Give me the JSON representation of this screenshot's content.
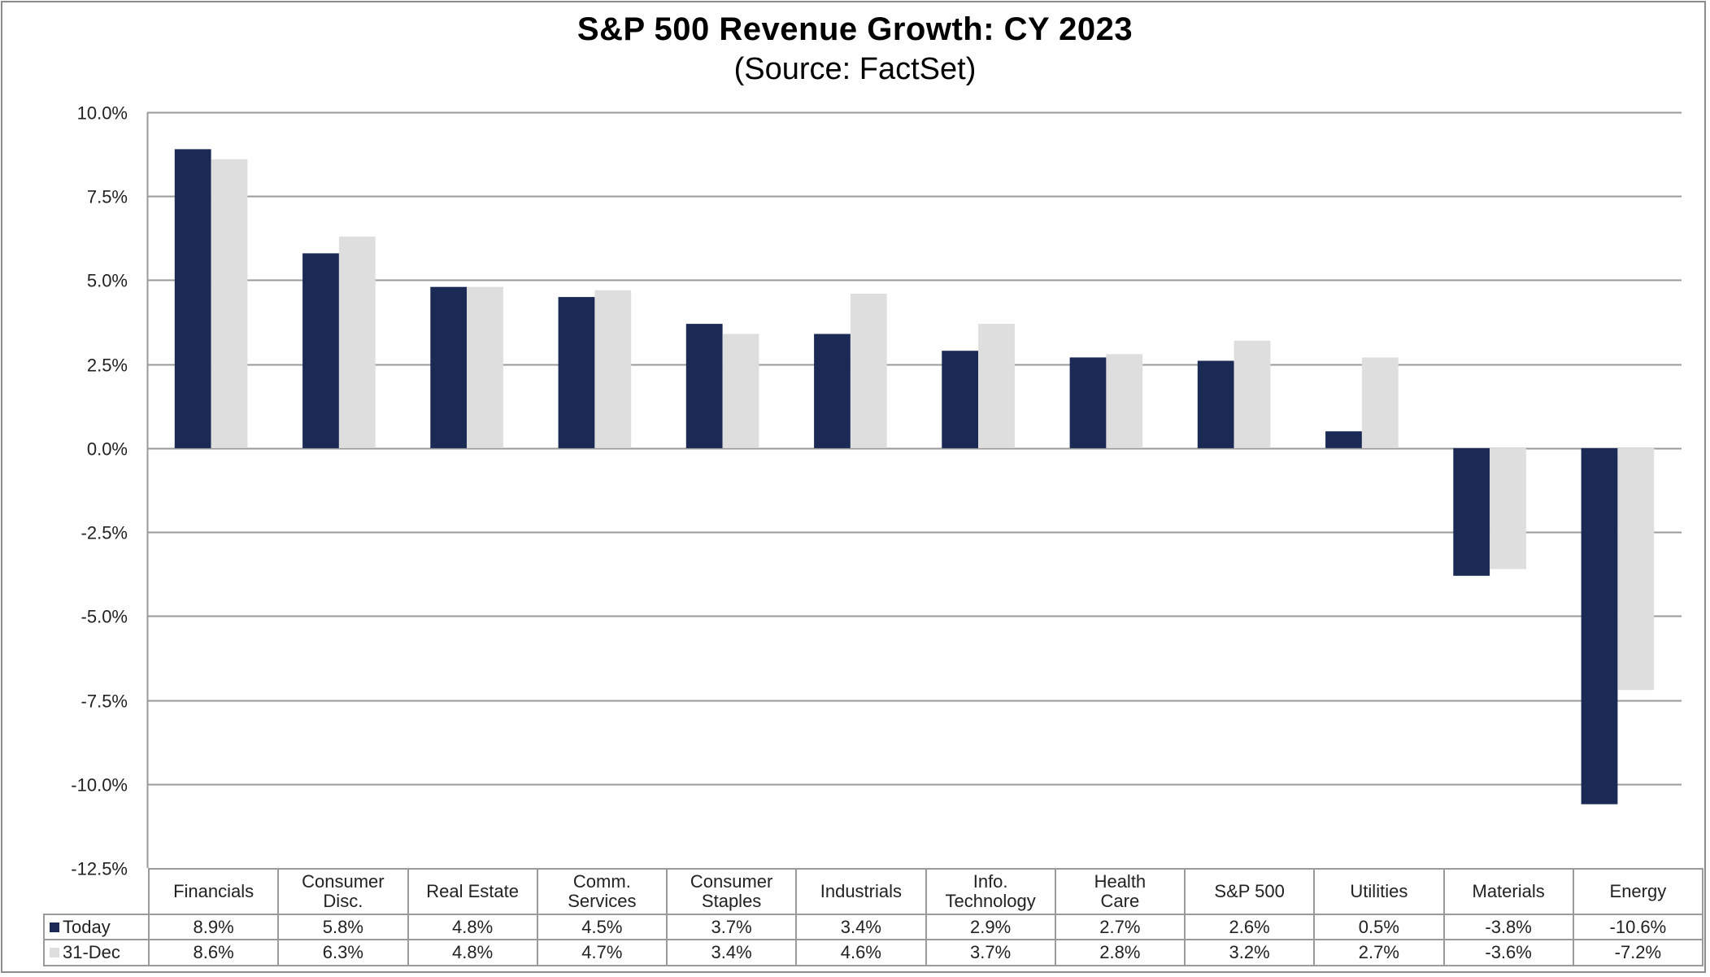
{
  "chart_data": {
    "type": "bar",
    "title": "S&P 500 Revenue Growth: CY 2023",
    "subtitle": "(Source: FactSet)",
    "xlabel": "",
    "ylabel": "",
    "ylim": [
      -12.5,
      10.0
    ],
    "y_ticks": [
      10.0,
      7.5,
      5.0,
      2.5,
      0.0,
      -2.5,
      -5.0,
      -7.5,
      -10.0,
      -12.5
    ],
    "y_tick_labels": [
      "10.0%",
      "7.5%",
      "5.0%",
      "2.5%",
      "0.0%",
      "-2.5%",
      "-5.0%",
      "-7.5%",
      "-10.0%",
      "-12.5%"
    ],
    "grid": true,
    "legend_placement": "data-table-left",
    "categories": [
      "Financials",
      "Consumer\nDisc.",
      "Real Estate",
      "Comm.\nServices",
      "Consumer\nStaples",
      "Industrials",
      "Info.\nTechnology",
      "Health\nCare",
      "S&P 500",
      "Utilities",
      "Materials",
      "Energy"
    ],
    "series": [
      {
        "name": "Today",
        "color": "#1a2a55",
        "values": [
          8.9,
          5.8,
          4.8,
          4.5,
          3.7,
          3.4,
          2.9,
          2.7,
          2.6,
          0.5,
          -3.8,
          -10.6
        ],
        "labels": [
          "8.9%",
          "5.8%",
          "4.8%",
          "4.5%",
          "3.7%",
          "3.4%",
          "2.9%",
          "2.7%",
          "2.6%",
          "0.5%",
          "-3.8%",
          "-10.6%"
        ]
      },
      {
        "name": "31-Dec",
        "color": "#dedede",
        "values": [
          8.6,
          6.3,
          4.8,
          4.7,
          3.4,
          4.6,
          3.7,
          2.8,
          3.2,
          2.7,
          -3.6,
          -7.2
        ],
        "labels": [
          "8.6%",
          "6.3%",
          "4.8%",
          "4.7%",
          "3.4%",
          "4.6%",
          "3.7%",
          "2.8%",
          "3.2%",
          "2.7%",
          "-3.6%",
          "-7.2%"
        ]
      }
    ]
  },
  "colors": {
    "gridline": "#9a9a9a",
    "axis": "#9a9a9a"
  }
}
